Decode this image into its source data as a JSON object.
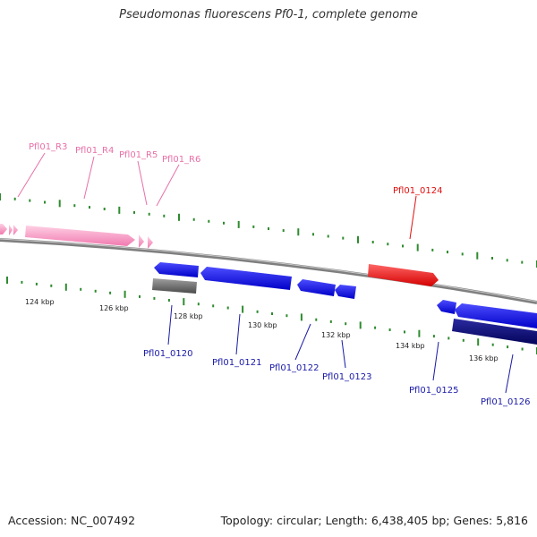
{
  "title": "Pseudomonas fluorescens Pf0-1, complete genome",
  "footer": {
    "accession": "Accession: NC_007492",
    "summary": "Topology: circular; Length: 6,438,405 bp; Genes: 5,816"
  },
  "colors": {
    "background": "#ffffff",
    "backbone": "#8a8a8a",
    "tick": "#2e8b2e",
    "gene_pink": "#ff9ec8",
    "gene_pink_label": "#e870a8",
    "gene_red": "#ff1a1a",
    "gene_blue": "#1a1aff",
    "gene_navy": "#0b0b80",
    "gene_gray": "#6e6e6e",
    "label_blue": "#1a1aa8"
  },
  "scale": {
    "kbp_labels": [
      "124 kbp",
      "126 kbp",
      "128 kbp",
      "130 kbp",
      "132 kbp",
      "134 kbp",
      "136 kbp"
    ]
  },
  "features": {
    "top_labels": [
      "Pfl01_R3",
      "Pfl01_R4",
      "Pfl01_R5",
      "Pfl01_R6",
      "Pfl01_0124"
    ],
    "bottom_labels": [
      "Pfl01_0120",
      "Pfl01_0121",
      "Pfl01_0122",
      "Pfl01_0123",
      "Pfl01_0125",
      "Pfl01_0126"
    ]
  }
}
